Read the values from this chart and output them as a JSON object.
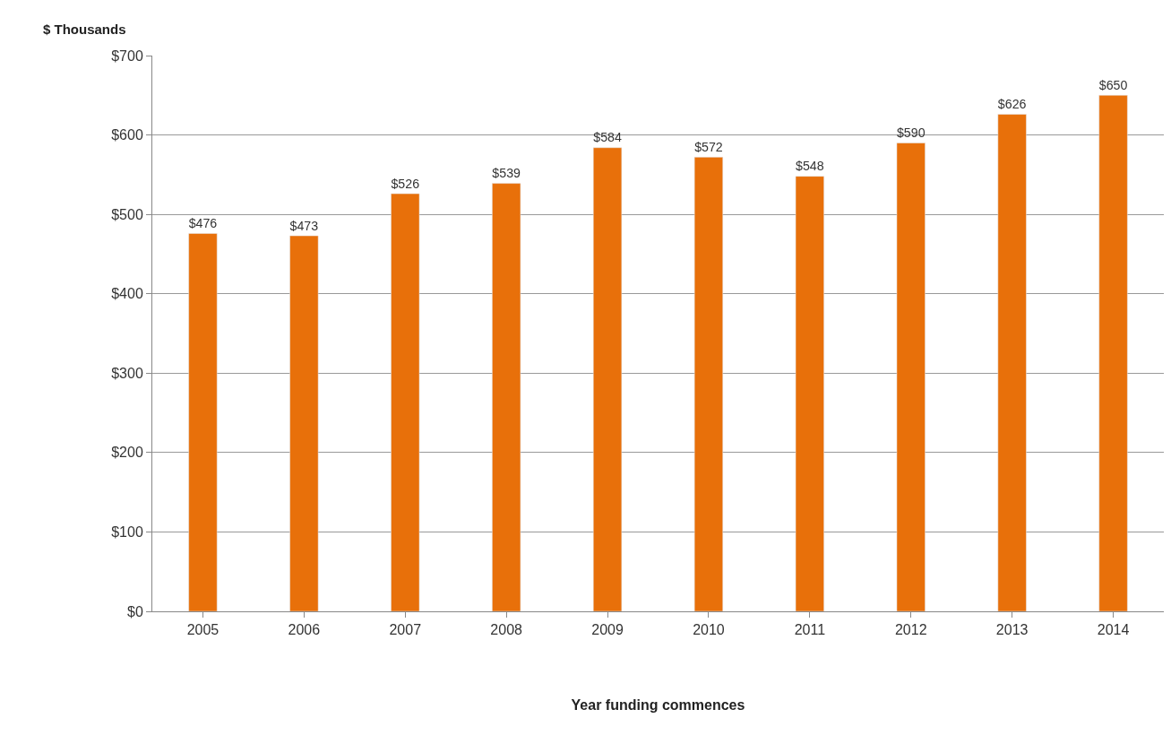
{
  "chart_data": {
    "type": "bar",
    "ylabel": "$ Thousands",
    "xlabel": "Year funding commences",
    "categories": [
      "2005",
      "2006",
      "2007",
      "2008",
      "2009",
      "2010",
      "2011",
      "2012",
      "2013",
      "2014"
    ],
    "values": [
      476,
      473,
      526,
      539,
      584,
      572,
      548,
      590,
      626,
      650
    ],
    "value_labels": [
      "$476",
      "$473",
      "$526",
      "$539",
      "$584",
      "$572",
      "$548",
      "$590",
      "$626",
      "$650"
    ],
    "color": "#e8700a",
    "ylim": [
      0,
      700
    ],
    "yticks": [
      {
        "value": 0,
        "label": "$0"
      },
      {
        "value": 100,
        "label": "$100"
      },
      {
        "value": 200,
        "label": "$200"
      },
      {
        "value": 300,
        "label": "$300"
      },
      {
        "value": 400,
        "label": "$400"
      },
      {
        "value": 500,
        "label": "$500"
      },
      {
        "value": 600,
        "label": "$600"
      },
      {
        "value": 700,
        "label": "$700"
      }
    ],
    "grid": "y"
  }
}
